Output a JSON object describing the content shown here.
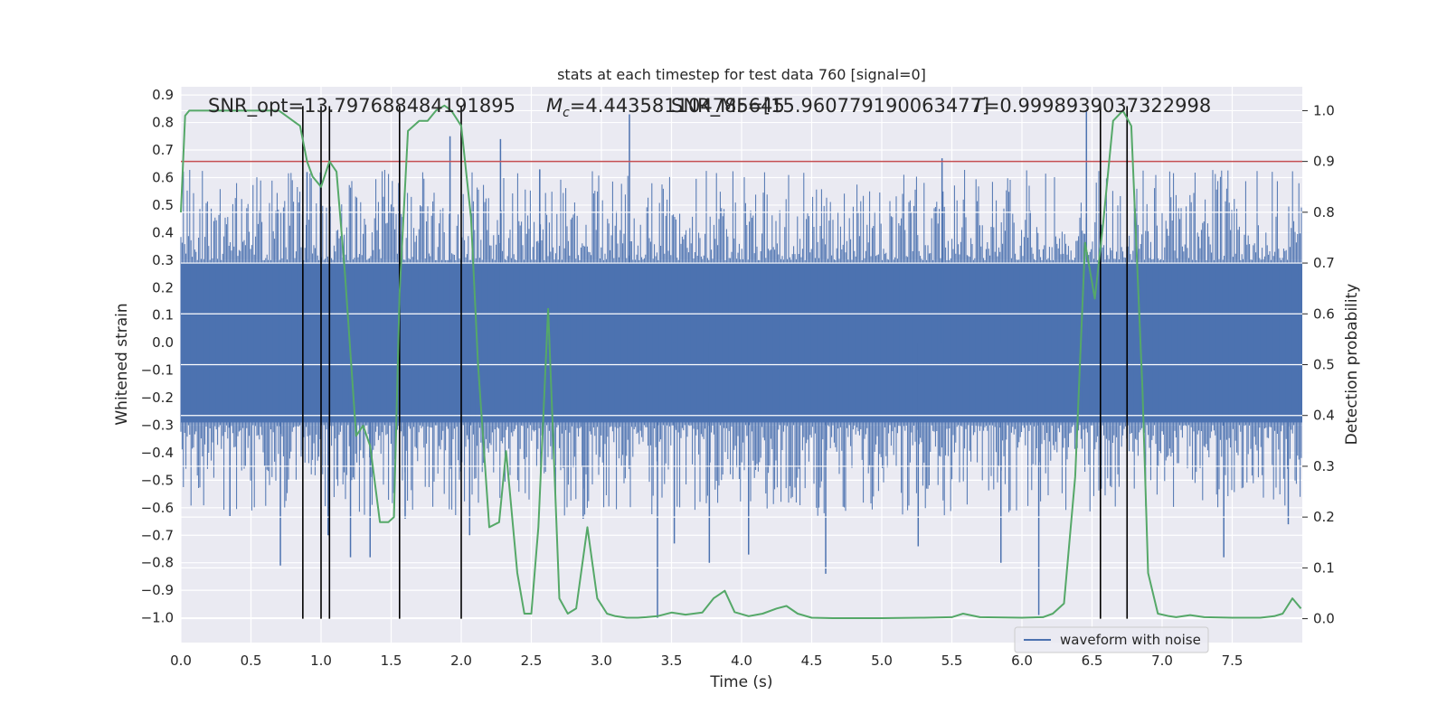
{
  "chart_data": {
    "type": "line",
    "title": "stats at each timestep for test data 760 [signal=0]",
    "xlabel": "Time (s)",
    "ylabel": "Whitened strain",
    "y2label": "Detection probability",
    "xlim": [
      0,
      8.0
    ],
    "ylim": [
      -1.09,
      0.93
    ],
    "y2lim": [
      -0.047,
      1.047
    ],
    "x_ticks": [
      "0.0",
      "0.5",
      "1.0",
      "1.5",
      "2.0",
      "2.5",
      "3.0",
      "3.5",
      "4.0",
      "4.5",
      "5.0",
      "5.5",
      "6.0",
      "6.5",
      "7.0",
      "7.5"
    ],
    "y_ticks": [
      "0.9",
      "0.8",
      "0.7",
      "0.6",
      "0.5",
      "0.4",
      "0.3",
      "0.2",
      "0.1",
      "0.0",
      "−0.1",
      "−0.2",
      "−0.3",
      "−0.4",
      "−0.5",
      "−0.6",
      "−0.7",
      "−0.8",
      "−0.9",
      "−1.0"
    ],
    "y2_ticks": [
      "1.0",
      "0.9",
      "0.8",
      "0.7",
      "0.6",
      "0.5",
      "0.4",
      "0.3",
      "0.2",
      "0.1",
      "0.0"
    ],
    "annotations": {
      "snr": "SNR_opt=13.797688484191895",
      "mc_sym": "M",
      "mc_sub": "c",
      "mc_val": "=4.443581104785645",
      "snr2": "SNR_MF=[15.960779190063477]",
      "t_sym": "T",
      "t_val": "=0.9998939037322998"
    },
    "legend": {
      "label": "waveform with noise",
      "placement": "lower-right"
    },
    "threshold_y2": 0.9,
    "vlines_x": [
      0.87,
      1.0,
      1.06,
      1.56,
      2.0,
      6.56,
      6.75
    ],
    "waveform": {
      "name": "waveform with noise",
      "core_band": [
        -0.29,
        0.29
      ],
      "spikes": [
        [
          0.35,
          -0.63
        ],
        [
          0.71,
          -0.81
        ],
        [
          0.9,
          0.62
        ],
        [
          1.05,
          -0.7
        ],
        [
          1.21,
          -0.78
        ],
        [
          1.35,
          -0.78
        ],
        [
          1.6,
          -0.64
        ],
        [
          1.92,
          0.75
        ],
        [
          2.06,
          -0.7
        ],
        [
          2.28,
          0.74
        ],
        [
          2.56,
          0.63
        ],
        [
          2.87,
          -0.64
        ],
        [
          3.2,
          0.83
        ],
        [
          3.4,
          -1.0
        ],
        [
          3.52,
          -0.73
        ],
        [
          3.77,
          -0.8
        ],
        [
          4.05,
          -0.77
        ],
        [
          4.6,
          -0.84
        ],
        [
          5.26,
          -0.74
        ],
        [
          5.43,
          0.67
        ],
        [
          5.85,
          -0.8
        ],
        [
          6.12,
          -0.99
        ],
        [
          6.46,
          0.84
        ],
        [
          7.44,
          -0.78
        ],
        [
          7.9,
          -0.66
        ]
      ]
    },
    "series": [
      {
        "name": "detection probability",
        "x": [
          0.0,
          0.03,
          0.06,
          0.12,
          0.7,
          0.8,
          0.85,
          0.9,
          0.94,
          1.0,
          1.06,
          1.11,
          1.17,
          1.25,
          1.3,
          1.35,
          1.42,
          1.48,
          1.52,
          1.56,
          1.62,
          1.7,
          1.76,
          1.82,
          1.88,
          1.93,
          2.0,
          2.07,
          2.12,
          2.2,
          2.27,
          2.32,
          2.4,
          2.45,
          2.5,
          2.55,
          2.62,
          2.7,
          2.76,
          2.82,
          2.9,
          2.97,
          3.04,
          3.1,
          3.18,
          3.26,
          3.32,
          3.4,
          3.5,
          3.6,
          3.72,
          3.8,
          3.88,
          3.95,
          4.05,
          4.15,
          4.25,
          4.32,
          4.4,
          4.5,
          4.65,
          5.0,
          5.3,
          5.5,
          5.58,
          5.7,
          6.0,
          6.15,
          6.22,
          6.3,
          6.38,
          6.45,
          6.52,
          6.58,
          6.65,
          6.72,
          6.78,
          6.86,
          6.9,
          6.97,
          7.05,
          7.1,
          7.2,
          7.3,
          7.5,
          7.7,
          7.8,
          7.86,
          7.93,
          7.99
        ],
        "y": [
          0.8,
          0.99,
          1.0,
          1.0,
          1.0,
          0.98,
          0.97,
          0.9,
          0.87,
          0.85,
          0.9,
          0.88,
          0.68,
          0.36,
          0.38,
          0.34,
          0.19,
          0.19,
          0.2,
          0.64,
          0.96,
          0.98,
          0.98,
          1.0,
          1.01,
          1.0,
          0.97,
          0.79,
          0.5,
          0.18,
          0.19,
          0.33,
          0.09,
          0.01,
          0.01,
          0.18,
          0.61,
          0.04,
          0.01,
          0.02,
          0.18,
          0.04,
          0.01,
          0.005,
          0.002,
          0.002,
          0.003,
          0.005,
          0.012,
          0.008,
          0.012,
          0.04,
          0.055,
          0.013,
          0.005,
          0.01,
          0.02,
          0.025,
          0.01,
          0.002,
          0.001,
          0.001,
          0.002,
          0.003,
          0.01,
          0.003,
          0.002,
          0.003,
          0.01,
          0.03,
          0.28,
          0.74,
          0.63,
          0.78,
          0.98,
          1.0,
          0.97,
          0.45,
          0.09,
          0.01,
          0.005,
          0.003,
          0.007,
          0.003,
          0.002,
          0.002,
          0.005,
          0.01,
          0.04,
          0.02
        ]
      }
    ],
    "colors": {
      "background": "#ffffff",
      "plot_bg": "#eaeaf2",
      "grid": "#ffffff",
      "waveform": "#4c72b0",
      "probability": "#55a868",
      "threshold": "#c44e52",
      "vlines": "#000000"
    }
  }
}
